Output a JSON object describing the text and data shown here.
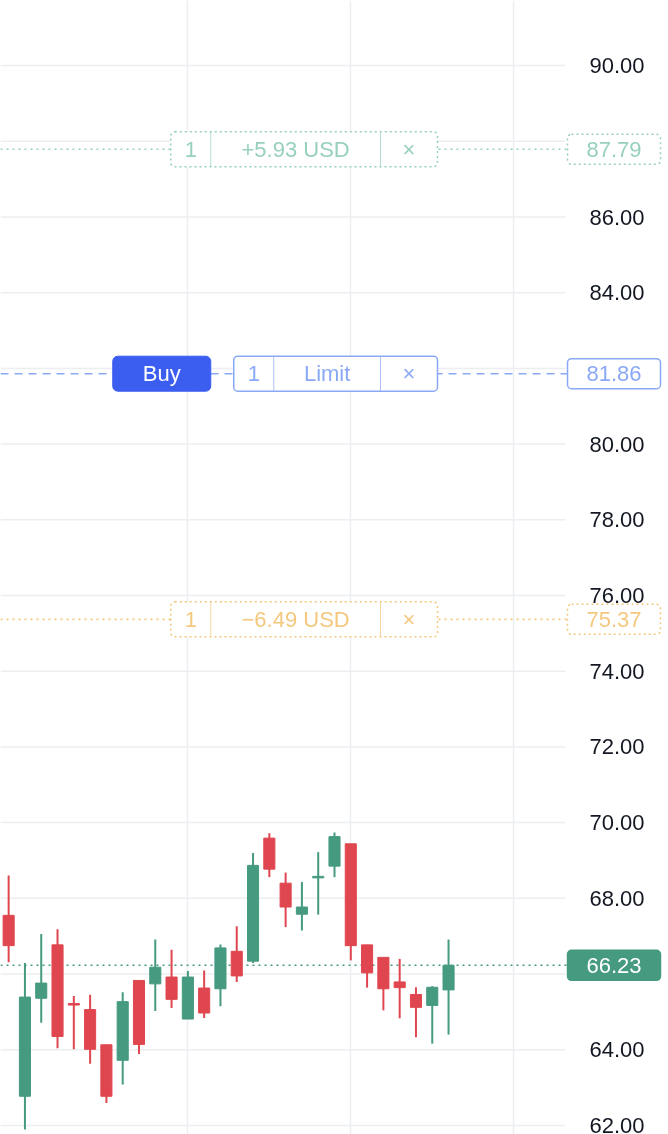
{
  "chart_data": {
    "type": "candlestick",
    "categories": [
      null,
      null,
      null,
      null,
      null,
      null,
      null,
      null,
      null,
      null,
      null,
      null,
      null,
      null,
      null,
      null,
      null,
      null,
      null,
      null,
      null,
      null,
      null,
      null,
      null,
      null,
      null,
      null,
      null,
      null,
      null,
      null,
      null,
      null,
      null,
      null,
      null,
      null,
      null,
      null,
      null
    ],
    "ohlc": [
      [
        67.55,
        68.6,
        66.31,
        66.75
      ],
      [
        62.77,
        66.29,
        61.89,
        65.39
      ],
      [
        65.36,
        67.06,
        64.71,
        65.76
      ],
      [
        66.77,
        67.18,
        64.04,
        64.35
      ],
      [
        65.22,
        65.42,
        64.01,
        65.18
      ],
      [
        65.06,
        65.45,
        63.63,
        64.01
      ],
      [
        64.13,
        64.13,
        62.59,
        62.77
      ],
      [
        63.72,
        65.52,
        63.08,
        65.27
      ],
      [
        65.83,
        65.83,
        63.89,
        64.14
      ],
      [
        65.74,
        66.91,
        65.02,
        66.18
      ],
      [
        65.92,
        66.64,
        65.1,
        65.33
      ],
      [
        64.81,
        66.08,
        64.81,
        65.92
      ],
      [
        65.63,
        66.09,
        64.84,
        64.97
      ],
      [
        65.61,
        66.78,
        65.15,
        66.69
      ],
      [
        66.6,
        67.26,
        65.79,
        65.95
      ],
      [
        66.34,
        69.2,
        66.29,
        68.87
      ],
      [
        69.59,
        69.72,
        68.56,
        68.77
      ],
      [
        68.4,
        68.68,
        67.24,
        67.77
      ],
      [
        67.58,
        68.43,
        67.15,
        67.77
      ],
      [
        68.54,
        69.22,
        67.57,
        68.58
      ],
      [
        68.85,
        69.74,
        68.56,
        69.63
      ],
      [
        69.44,
        69.44,
        66.36,
        66.75
      ],
      [
        66.77,
        66.77,
        65.64,
        66.03
      ],
      [
        66.44,
        66.44,
        65.04,
        65.61
      ],
      [
        65.79,
        66.4,
        64.83,
        65.64
      ],
      [
        65.46,
        65.65,
        64.33,
        65.12
      ],
      [
        65.17,
        65.68,
        64.16,
        65.65
      ],
      [
        65.58,
        66.91,
        64.4,
        66.23
      ],
      null,
      null,
      null,
      null,
      null,
      null,
      null,
      null,
      null,
      null,
      null,
      null,
      null
    ],
    "colors": [
      "#e0464f",
      "#459a80",
      "#459a80",
      "#e0464f",
      "#e0464f",
      "#e0464f",
      "#e0464f",
      "#459a80",
      "#e0464f",
      "#459a80",
      "#e0464f",
      "#459a80",
      "#e0464f",
      "#459a80",
      "#e0464f",
      "#459a80",
      "#e0464f",
      "#e0464f",
      "#459a80",
      "#459a80",
      "#459a80",
      "#e0464f",
      "#e0464f",
      "#e0464f",
      "#e0464f",
      "#e0464f",
      "#459a80",
      "#459a80",
      null,
      null,
      null,
      null,
      null,
      null,
      null,
      null,
      null,
      null,
      null,
      null,
      null
    ],
    "ylim": [
      61.76,
      91.72
    ],
    "yticks": [
      {
        "value": 62,
        "label": "62.00"
      },
      {
        "value": 64,
        "label": "64.00"
      },
      {
        "value": 66,
        "label": null
      },
      {
        "value": 68,
        "label": "68.00"
      },
      {
        "value": 70,
        "label": "70.00"
      },
      {
        "value": 72,
        "label": "72.00"
      },
      {
        "value": 74,
        "label": "74.00"
      },
      {
        "value": 76,
        "label": "76.00"
      },
      {
        "value": 78,
        "label": "78.00"
      },
      {
        "value": 80,
        "label": "80.00"
      },
      {
        "value": 82,
        "label": null
      },
      {
        "value": 84,
        "label": "84.00"
      },
      {
        "value": 86,
        "label": "86.00"
      },
      {
        "value": 88,
        "label": null
      },
      {
        "value": 90,
        "label": "90.00"
      }
    ],
    "tick_labels": "y",
    "grid": true,
    "ref_lines": [
      {
        "axis": "y",
        "value": 87.79,
        "label": "87.79",
        "color": "#97d0bc",
        "line_style": "dotted"
      },
      {
        "axis": "y",
        "value": 81.86,
        "label": "81.86",
        "color": "#8aa9f5",
        "line_style": "dashed"
      },
      {
        "axis": "y",
        "value": 75.37,
        "label": "75.37",
        "color": "#f4c87e",
        "line_style": "dotted"
      },
      {
        "axis": "y",
        "value": 66.23,
        "label": "66.23",
        "color": "#459a80",
        "line_style": "dotted"
      }
    ],
    "annotations": [
      {
        "text": "1",
        "y": 87.79
      },
      {
        "text": "+5.93 USD",
        "y": 87.79
      },
      {
        "text": "×",
        "y": 87.79
      },
      {
        "text": "Buy",
        "y": 81.86
      },
      {
        "text": "1",
        "y": 81.86
      },
      {
        "text": "Limit",
        "y": 81.86
      },
      {
        "text": "×",
        "y": 81.86
      },
      {
        "text": "1",
        "y": 75.37
      },
      {
        "text": "−6.49 USD",
        "y": 75.37
      },
      {
        "text": "×",
        "y": 75.37
      }
    ]
  }
}
